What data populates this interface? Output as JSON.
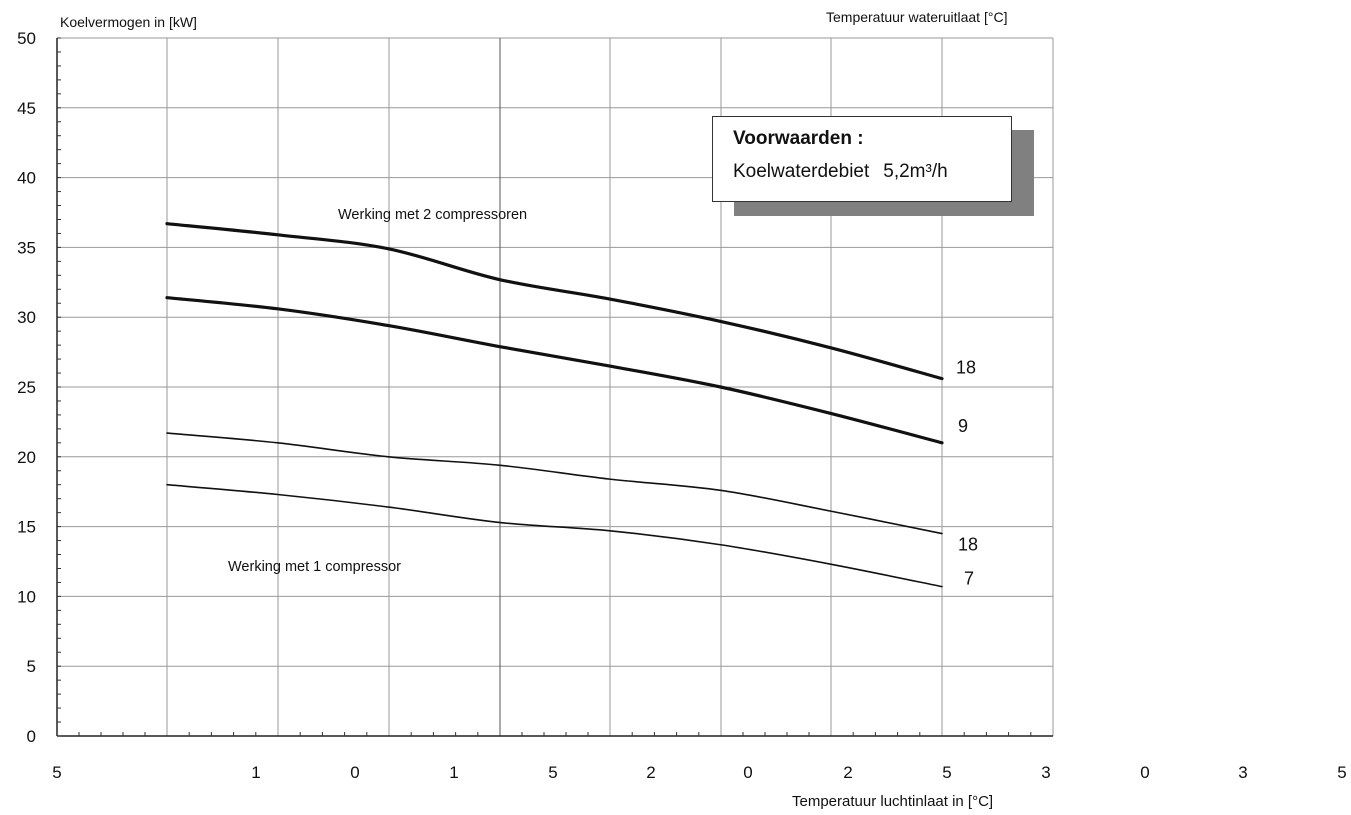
{
  "chart_data": {
    "type": "line",
    "ylabel": "Koelvermogen in [kW]",
    "xlabel": "Temperatuur luchtinlaat in [°C]",
    "top_right_label": "Temperatuur wateruitlaat [°C]",
    "ylim": [
      0,
      50
    ],
    "y_ticks": [
      "0",
      "5",
      "10",
      "15",
      "20",
      "25",
      "30",
      "35",
      "40",
      "45",
      "50"
    ],
    "x_tick_labels": [
      "5",
      "1",
      "0",
      "1",
      "5",
      "2",
      "0",
      "2",
      "5",
      "3",
      "0",
      "3",
      "5"
    ],
    "grid": true,
    "legend": {
      "title": "Voorwaarden :",
      "label": "Koelwaterdebiet",
      "value": "5,2m³/h"
    },
    "annotations": [
      "Werking met 2 compressoren",
      "Werking met 1 compressor"
    ],
    "x": [
      1,
      2,
      3,
      4,
      5,
      6,
      7,
      8
    ],
    "series": [
      {
        "name": "18",
        "group": "2 compressoren",
        "weight": "bold",
        "values": [
          36.7,
          35.9,
          34.9,
          32.7,
          31.3,
          29.7,
          27.8,
          25.6
        ]
      },
      {
        "name": "9",
        "group": "2 compressoren",
        "weight": "bold",
        "values": [
          31.4,
          30.6,
          29.4,
          27.9,
          26.5,
          25.0,
          23.1,
          21.0
        ]
      },
      {
        "name": "18",
        "group": "1 compressor",
        "weight": "thin",
        "values": [
          21.7,
          21.0,
          20.0,
          19.4,
          18.4,
          17.6,
          16.1,
          14.5
        ]
      },
      {
        "name": "7",
        "group": "1 compressor",
        "weight": "thin",
        "values": [
          18.0,
          17.3,
          16.4,
          15.3,
          14.7,
          13.7,
          12.3,
          10.7
        ]
      }
    ]
  }
}
